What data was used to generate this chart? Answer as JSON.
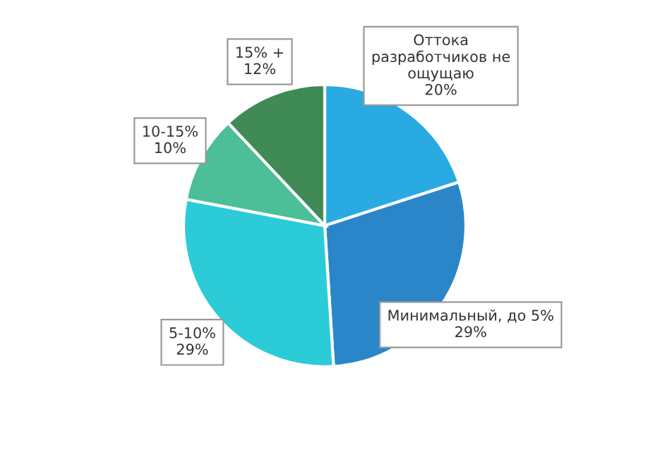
{
  "chart_data": {
    "type": "pie",
    "categories": [
      "Оттока\nразработчиков не\nощущаю",
      "Минимальный, до 5%",
      "5-10%",
      "10-15%",
      "15% +"
    ],
    "values": [
      20,
      29,
      29,
      10,
      12
    ],
    "value_labels": [
      "20%",
      "29%",
      "29%",
      "10%",
      "12%"
    ],
    "colors": [
      "#2aaae2",
      "#2b86c9",
      "#2ccbd8",
      "#4cbe98",
      "#3f8a55"
    ],
    "legend": false
  }
}
